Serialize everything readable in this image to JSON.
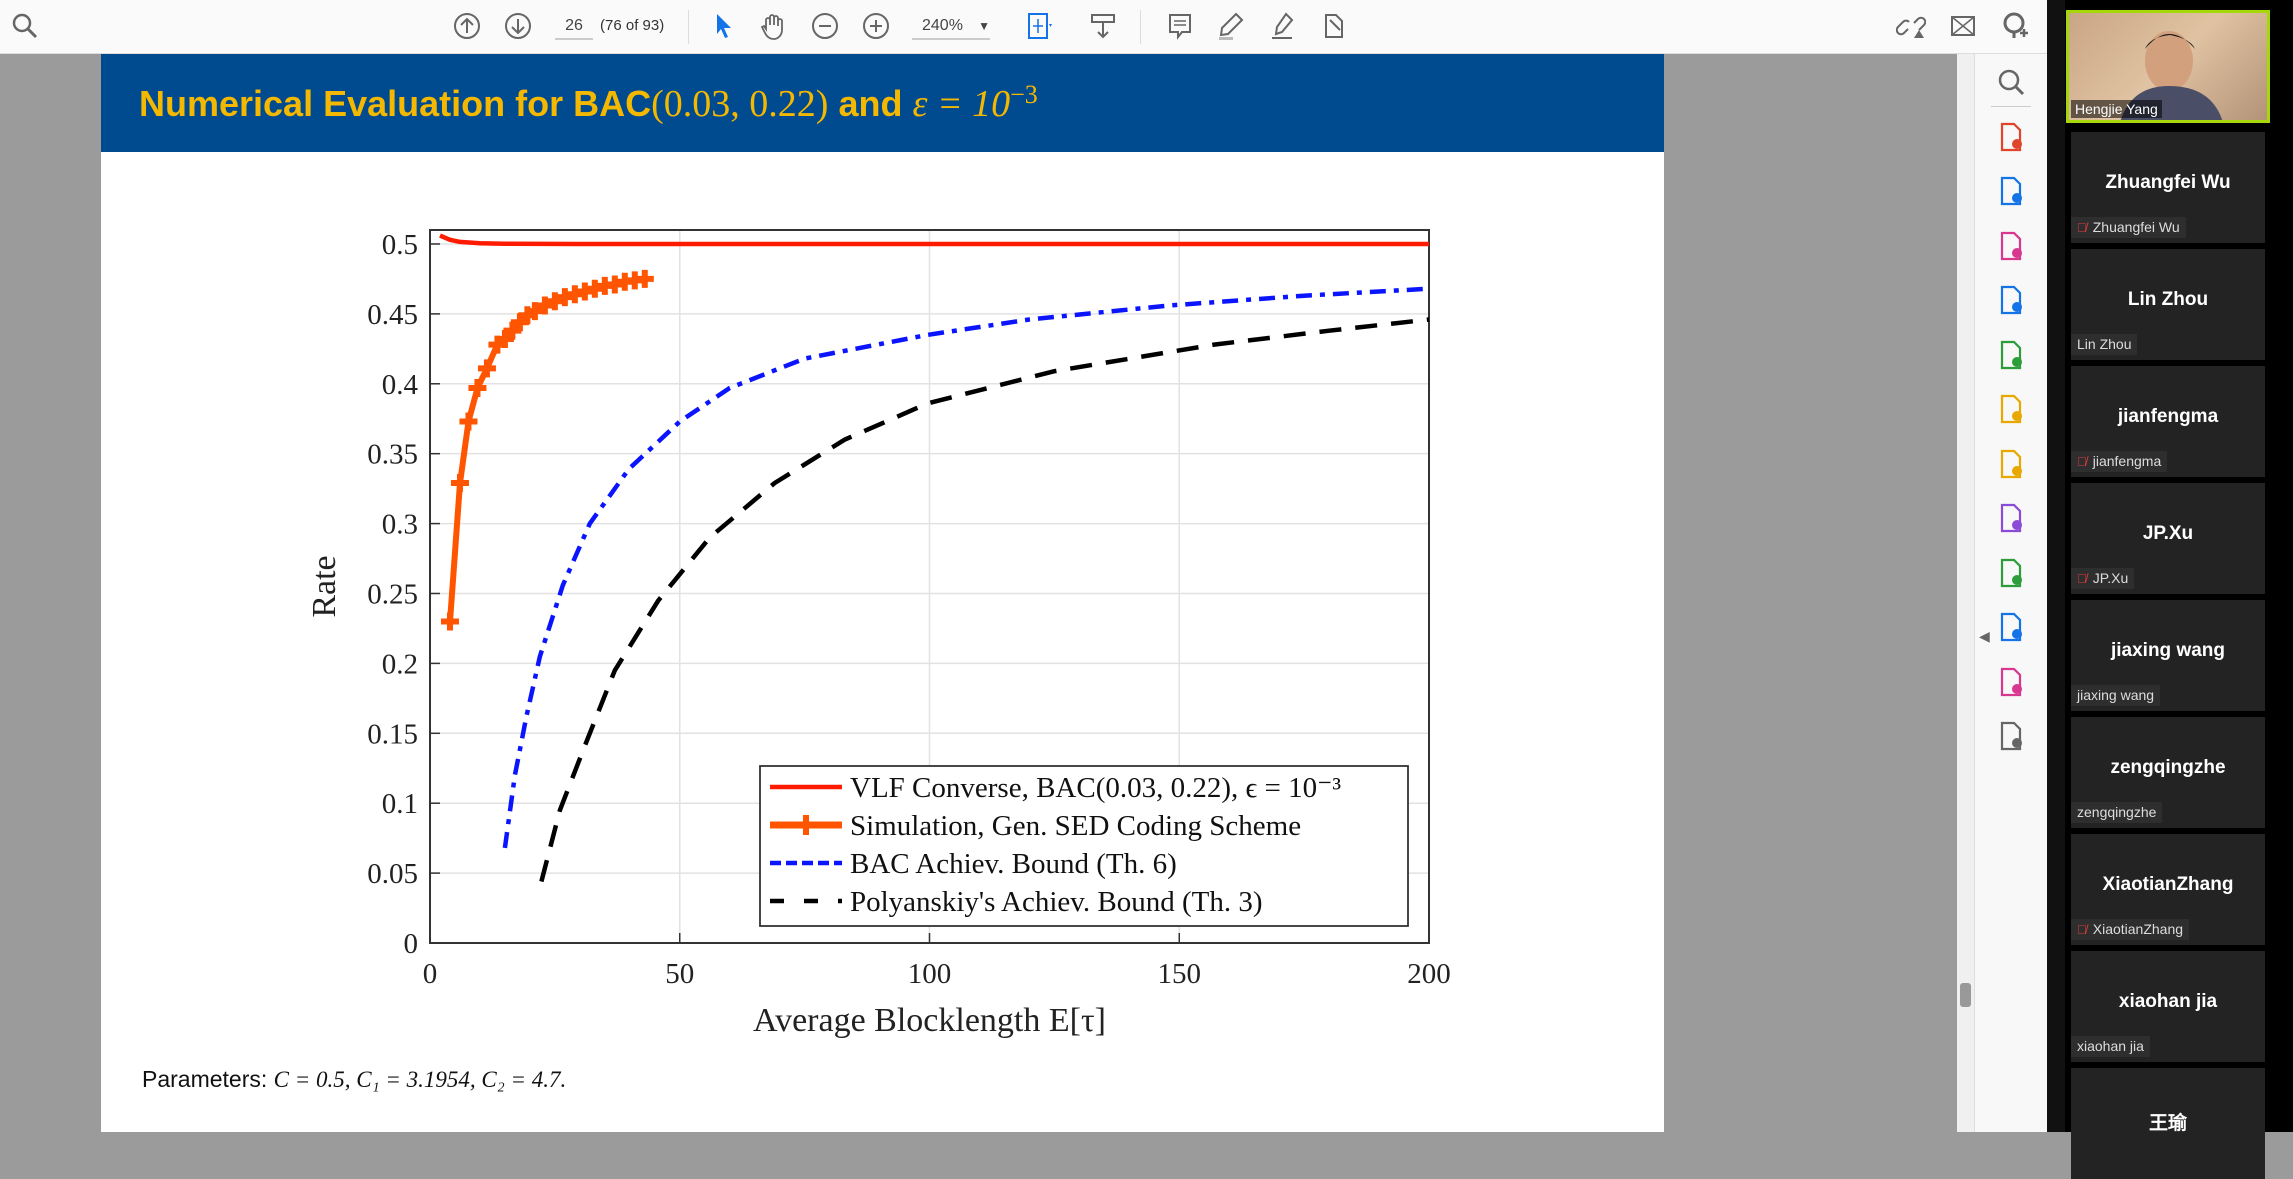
{
  "toolbar": {
    "page_number": "26",
    "page_of": "(76 of 93)",
    "zoom_level": "240%"
  },
  "slide": {
    "title_text": "Numerical Evaluation for BAC",
    "title_math": "(0.03, 0.22)",
    "title_and": "and",
    "title_eps": "ε = 10",
    "title_exp": "−3",
    "parameters_label": "Parameters:",
    "parameters_math": "C = 0.5, C₁ = 3.1954, C₂ = 4.7."
  },
  "chart_data": {
    "type": "line",
    "xlabel": "Average Blocklength E[τ]",
    "ylabel": "Rate",
    "xlim": [
      0,
      200
    ],
    "ylim": [
      0,
      0.51
    ],
    "xticks": [
      "0",
      "50",
      "100",
      "150",
      "200"
    ],
    "yticks": [
      "0",
      "0.05",
      "0.1",
      "0.15",
      "0.2",
      "0.25",
      "0.3",
      "0.35",
      "0.4",
      "0.45",
      "0.5"
    ],
    "grid": true,
    "legend_position": "bottom-right",
    "series": [
      {
        "name": "VLF Converse, BAC(0.03, 0.22), ϵ = 10⁻³",
        "color": "#ff1a00",
        "style": "solid",
        "x": [
          2,
          4,
          6,
          10,
          15,
          30,
          60,
          100,
          150,
          200
        ],
        "y": [
          0.506,
          0.503,
          0.5015,
          0.5005,
          0.5002,
          0.5,
          0.5,
          0.5,
          0.5,
          0.5
        ]
      },
      {
        "name": "Simulation, Gen. SED Coding Scheme",
        "color": "#ff5500",
        "style": "solid-plus",
        "x": [
          4,
          6,
          7.7,
          9.5,
          11.4,
          13.5,
          15,
          16.5,
          18,
          19.5,
          21,
          23,
          25,
          27,
          29,
          31,
          33,
          35,
          37,
          39,
          41,
          43
        ],
        "y": [
          0.23,
          0.329,
          0.373,
          0.397,
          0.411,
          0.428,
          0.432,
          0.438,
          0.444,
          0.449,
          0.452,
          0.456,
          0.459,
          0.462,
          0.464,
          0.466,
          0.468,
          0.47,
          0.471,
          0.473,
          0.474,
          0.475
        ]
      },
      {
        "name": "BAC Achiev. Bound (Th. 6)",
        "color": "#0a14ff",
        "style": "dashdot",
        "x": [
          15,
          17,
          19.3,
          22,
          26.6,
          32,
          39.8,
          50,
          60,
          75,
          99.6,
          120,
          148,
          175,
          200
        ],
        "y": [
          0.068,
          0.12,
          0.162,
          0.205,
          0.256,
          0.3,
          0.339,
          0.373,
          0.397,
          0.418,
          0.435,
          0.446,
          0.456,
          0.463,
          0.468
        ]
      },
      {
        "name": "Polyanskiy's Achiev. Bound (Th. 3)",
        "color": "#000000",
        "style": "dashed",
        "x": [
          22.3,
          26,
          31,
          37,
          45.7,
          56,
          69,
          83,
          99.6,
          125,
          157,
          180,
          200
        ],
        "y": [
          0.044,
          0.095,
          0.141,
          0.195,
          0.245,
          0.29,
          0.329,
          0.36,
          0.386,
          0.409,
          0.428,
          0.438,
          0.446
        ]
      }
    ]
  },
  "right_panel": {
    "tools": [
      "search-zoom",
      "export-pdf",
      "create-pdf",
      "organize-pages",
      "edit-pdf",
      "compress-pdf",
      "request-signature",
      "comment",
      "fill-sign",
      "print-production",
      "protect",
      "create-pdf-plus",
      "more-tools"
    ]
  },
  "meeting": {
    "active_speaker": "Hengjie Yang",
    "participants": [
      {
        "name": "Zhuangfei Wu",
        "label": "Zhuangfei Wu",
        "muted": true
      },
      {
        "name": "Lin Zhou",
        "label": "Lin Zhou",
        "muted": false
      },
      {
        "name": "jianfengma",
        "label": "jianfengma",
        "muted": true
      },
      {
        "name": "JP.Xu",
        "label": "JP.Xu",
        "muted": true
      },
      {
        "name": "jiaxing wang",
        "label": "jiaxing wang",
        "muted": false
      },
      {
        "name": "zengqingzhe",
        "label": "zengqingzhe",
        "muted": false
      },
      {
        "name": "XiaotianZhang",
        "label": "XiaotianZhang",
        "muted": true
      },
      {
        "name": "xiaohan jia",
        "label": "xiaohan jia",
        "muted": false
      },
      {
        "name": "王瑜",
        "label": "",
        "muted": false
      }
    ]
  }
}
